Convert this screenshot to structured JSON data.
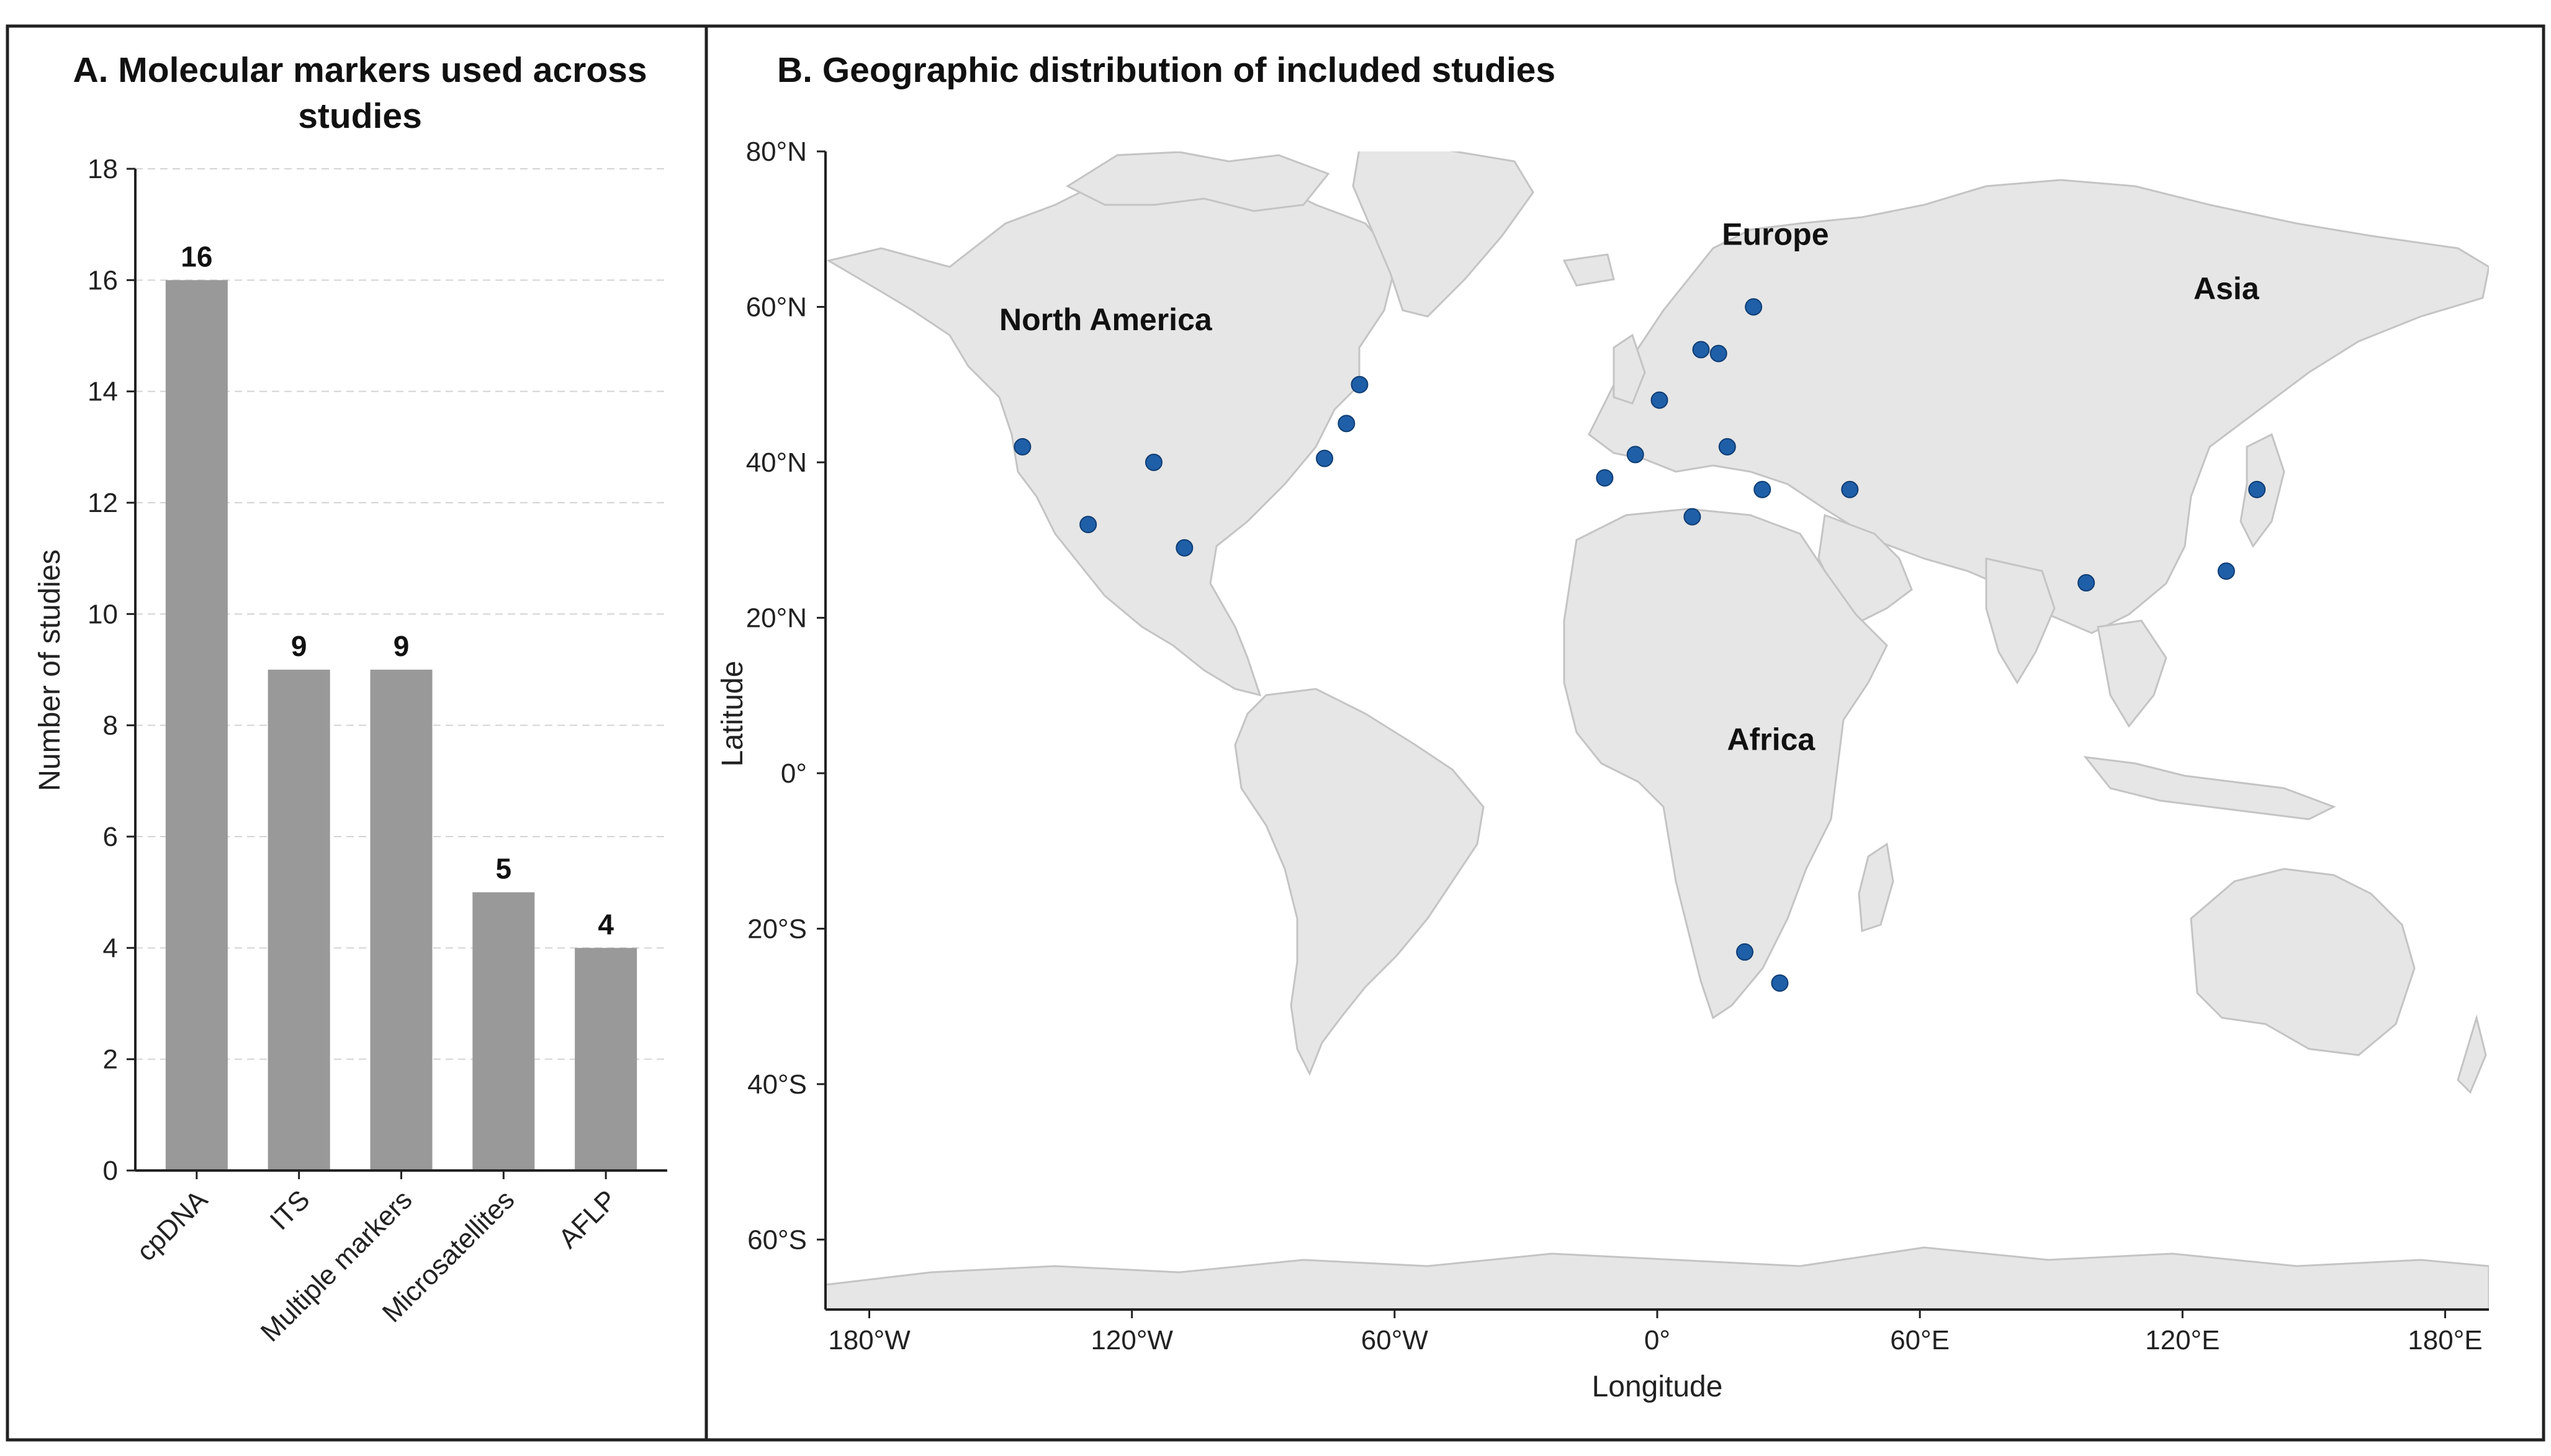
{
  "colors": {
    "bar": "#999999",
    "land": "#e6e6e6",
    "coast": "#c4c4c4",
    "point": "#1f5fa8",
    "grid": "#d4d4d4"
  },
  "chart_data": [
    {
      "panel": "A",
      "type": "bar",
      "title_lines": [
        "A. Molecular markers used across",
        "studies"
      ],
      "categories": [
        "cpDNA",
        "ITS",
        "Multiple markers",
        "Microsatellites",
        "AFLP"
      ],
      "values": [
        16,
        9,
        9,
        5,
        4
      ],
      "value_labels": [
        "16",
        "9",
        "9",
        "5",
        "4"
      ],
      "ylabel": "Number of studies",
      "ylim": [
        0,
        18
      ],
      "yticks": [
        "0",
        "2",
        "4",
        "6",
        "8",
        "10",
        "12",
        "14",
        "16",
        "18"
      ],
      "grid": "horizontal dashed"
    },
    {
      "panel": "B",
      "type": "scatter",
      "title": "B. Geographic distribution of included studies",
      "xlabel": "Longitude",
      "ylabel": "Latitude",
      "xlim": [
        -190,
        190
      ],
      "ylim": [
        -69,
        80
      ],
      "xticks": [
        -180,
        -120,
        -60,
        0,
        60,
        120,
        180
      ],
      "xtick_labels": [
        "180°W",
        "120°W",
        "60°W",
        "0°",
        "60°E",
        "120°E",
        "180°E"
      ],
      "yticks": [
        80,
        60,
        40,
        20,
        0,
        -20,
        -40,
        -60
      ],
      "ytick_labels": [
        "80°N",
        "60°N",
        "40°N",
        "20°N",
        "0°",
        "20°S",
        "40°S",
        "60°S"
      ],
      "regions": [
        {
          "name": "North America",
          "lon": -126,
          "lat": 57
        },
        {
          "name": "Europe",
          "lon": 27,
          "lat": 68
        },
        {
          "name": "Asia",
          "lon": 130,
          "lat": 61
        },
        {
          "name": "Africa",
          "lon": 26,
          "lat": 3
        }
      ],
      "points": [
        {
          "lon": -145,
          "lat": 42
        },
        {
          "lon": -130,
          "lat": 32
        },
        {
          "lon": -115,
          "lat": 40
        },
        {
          "lon": -108,
          "lat": 29
        },
        {
          "lon": -76,
          "lat": 40.5
        },
        {
          "lon": -71,
          "lat": 45
        },
        {
          "lon": -68,
          "lat": 50
        },
        {
          "lon": -12,
          "lat": 38
        },
        {
          "lon": -5,
          "lat": 41
        },
        {
          "lon": 0.5,
          "lat": 48
        },
        {
          "lon": 8,
          "lat": 33
        },
        {
          "lon": 10,
          "lat": 54.5
        },
        {
          "lon": 14,
          "lat": 54
        },
        {
          "lon": 16,
          "lat": 42
        },
        {
          "lon": 22,
          "lat": 60
        },
        {
          "lon": 24,
          "lat": 36.5
        },
        {
          "lon": 44,
          "lat": 36.5
        },
        {
          "lon": 20,
          "lat": -23
        },
        {
          "lon": 28,
          "lat": -27
        },
        {
          "lon": 98,
          "lat": 24.5
        },
        {
          "lon": 130,
          "lat": 26
        },
        {
          "lon": 137,
          "lat": 36.5
        }
      ]
    }
  ]
}
